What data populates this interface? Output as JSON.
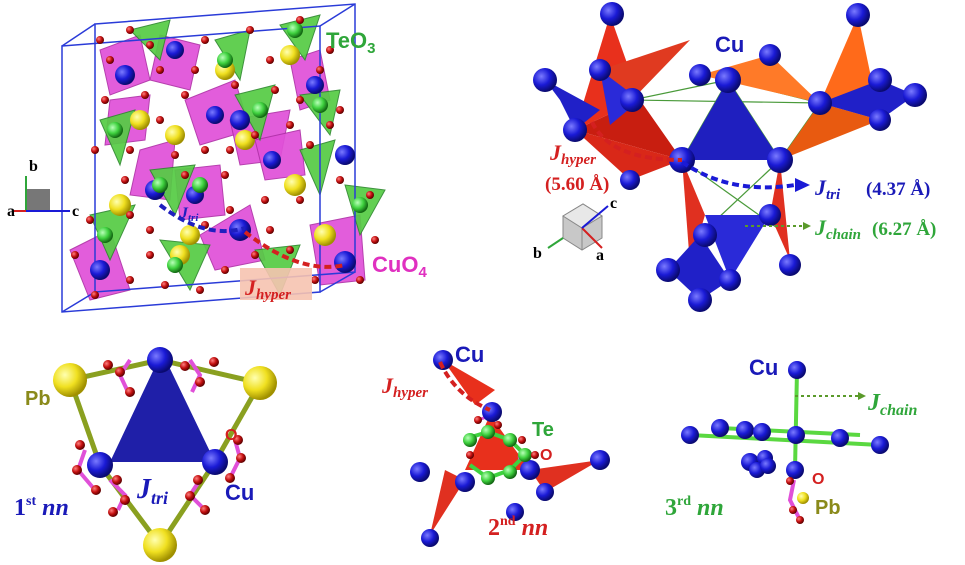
{
  "colors": {
    "cu": "#1a1ad6",
    "pb": "#f0e020",
    "te": "#3fd23f",
    "oxygen": "#c41010",
    "cuo4_poly": "#e050d8",
    "teo3_poly": "#55cc44",
    "hyper_poly": "#e8301c",
    "tri": "#1f1fbf",
    "chain": "#5a9a2a",
    "label_red": "#d42020",
    "label_green": "#2fa63a",
    "label_magenta": "#e030c0",
    "label_blue": "#1a1ab8",
    "label_olive": "#8a8a1a"
  },
  "panel_a": {
    "teo3": "TeO",
    "teo3_sub": "3",
    "cuo4": "CuO",
    "cuo4_sub": "4",
    "j_tri": "J",
    "j_tri_sub": "tri",
    "j_hyper": "J",
    "j_hyper_sub": "hyper",
    "axis_a": "a",
    "axis_b": "b",
    "axis_c": "c"
  },
  "panel_b": {
    "cu": "Cu",
    "j_hyper": "J",
    "j_hyper_sub": "hyper",
    "j_hyper_dist": "(5.60 Å)",
    "j_tri": "J",
    "j_tri_sub": "tri",
    "j_tri_dist": "(4.37 Å)",
    "j_chain": "J",
    "j_chain_sub": "chain",
    "j_chain_dist": "(6.27 Å)",
    "axis_a": "a",
    "axis_b": "b",
    "axis_c": "c"
  },
  "panel_c": {
    "pb": "Pb",
    "o": "O",
    "cu": "Cu",
    "j": "J",
    "j_sub": "tri",
    "nn_num": "1",
    "nn_sup": "st",
    "nn": "nn"
  },
  "panel_d": {
    "cu": "Cu",
    "te": "Te",
    "o": "O",
    "j": "J",
    "j_sub": "hyper",
    "nn_num": "2",
    "nn_sup": "nd",
    "nn": "nn"
  },
  "panel_e": {
    "cu": "Cu",
    "o": "O",
    "pb": "Pb",
    "j": "J",
    "j_sub": "chain",
    "nn_num": "3",
    "nn_sup": "rd",
    "nn": "nn"
  }
}
